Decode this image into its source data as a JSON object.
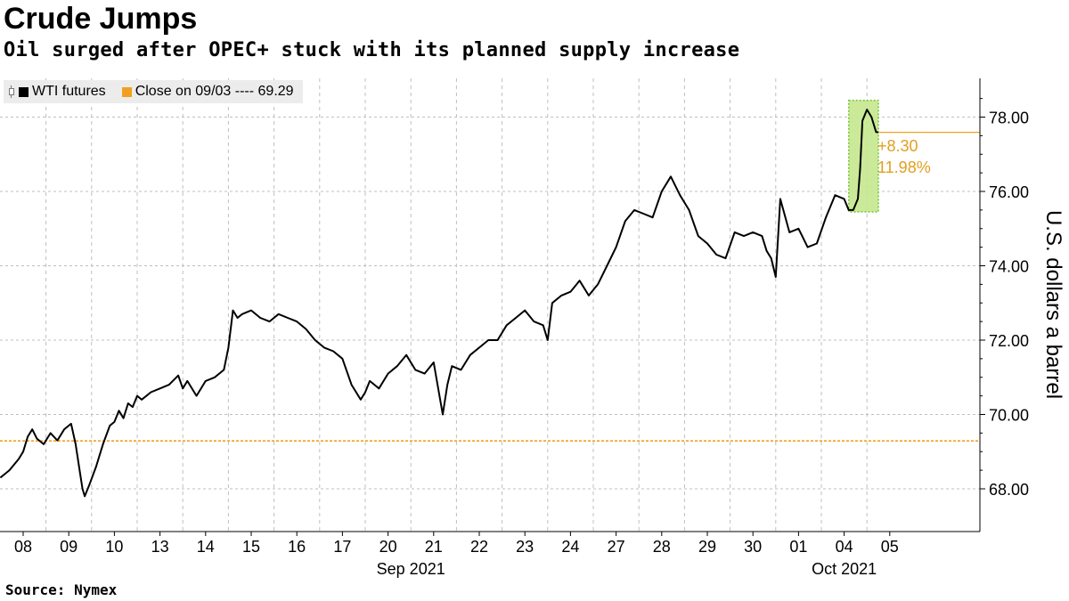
{
  "header": {
    "title": "Crude Jumps",
    "subtitle": "Oil surged after OPEC+ stuck with its planned supply increase"
  },
  "legend": {
    "series_label": "WTI futures",
    "reference_label": "Close on 09/03 ---- 69.29"
  },
  "annotation": {
    "change": "+8.30",
    "percent": "11.98%"
  },
  "source": "Source: Nymex",
  "colors": {
    "series": "#000000",
    "reference": "#f0a020",
    "highlight_fill": "#c4e88e",
    "highlight_border": "#7bc23a",
    "annotation_text": "#e0a020",
    "grid": "#bfbfbf"
  },
  "chart_data": {
    "type": "line",
    "title": "Crude Jumps",
    "subtitle": "Oil surged after OPEC+ stuck with its planned supply increase",
    "ylabel": "U.S. dollars a barrel",
    "y_axis_side": "right",
    "ylim": [
      67.0,
      79.0
    ],
    "yticks": [
      68,
      70,
      72,
      74,
      76,
      78
    ],
    "ytick_labels": [
      "68.00",
      "70.00",
      "72.00",
      "74.00",
      "76.00",
      "78.00"
    ],
    "x_tick_labels": [
      "08",
      "09",
      "10",
      "13",
      "14",
      "15",
      "16",
      "17",
      "20",
      "21",
      "22",
      "23",
      "24",
      "27",
      "28",
      "29",
      "30",
      "01",
      "04",
      "05"
    ],
    "x_group_labels": [
      {
        "label": "Sep 2021",
        "at": "21"
      },
      {
        "label": "Oct 2021",
        "at": "04"
      }
    ],
    "reference_line": {
      "label": "Close on 09/03",
      "value": 69.29
    },
    "current_value_line": 77.59,
    "highlight_region": {
      "from": 18.1,
      "to": 18.75,
      "ymin": 75.45,
      "ymax": 78.45
    },
    "grid": true,
    "legend_position": "top-left",
    "series": [
      {
        "name": "WTI futures",
        "x": [
          -0.5,
          -0.3,
          -0.1,
          0.0,
          0.1,
          0.2,
          0.3,
          0.45,
          0.6,
          0.75,
          0.9,
          1.05,
          1.15,
          1.25,
          1.3,
          1.35,
          1.45,
          1.6,
          1.75,
          1.9,
          2.0,
          2.1,
          2.2,
          2.3,
          2.4,
          2.5,
          2.6,
          2.8,
          3.0,
          3.2,
          3.4,
          3.5,
          3.6,
          3.8,
          4.0,
          4.2,
          4.4,
          4.5,
          4.6,
          4.7,
          4.8,
          5.0,
          5.2,
          5.4,
          5.6,
          5.8,
          6.0,
          6.2,
          6.4,
          6.6,
          6.8,
          7.0,
          7.2,
          7.4,
          7.5,
          7.6,
          7.8,
          8.0,
          8.2,
          8.4,
          8.6,
          8.8,
          9.0,
          9.2,
          9.3,
          9.4,
          9.6,
          9.8,
          10.0,
          10.2,
          10.4,
          10.6,
          10.8,
          11.0,
          11.2,
          11.4,
          11.5,
          11.6,
          11.8,
          12.0,
          12.2,
          12.4,
          12.6,
          12.8,
          13.0,
          13.2,
          13.4,
          13.6,
          13.8,
          14.0,
          14.2,
          14.4,
          14.6,
          14.8,
          15.0,
          15.2,
          15.4,
          15.6,
          15.8,
          16.0,
          16.2,
          16.3,
          16.4,
          16.5,
          16.6,
          16.8,
          17.0,
          17.2,
          17.4,
          17.6,
          17.8,
          18.0,
          18.1,
          18.2,
          18.3,
          18.35,
          18.4,
          18.5,
          18.6,
          18.7,
          18.75
        ],
        "values": [
          68.3,
          68.5,
          68.8,
          69.0,
          69.4,
          69.6,
          69.35,
          69.2,
          69.5,
          69.3,
          69.6,
          69.75,
          69.2,
          68.4,
          68.0,
          67.8,
          68.1,
          68.6,
          69.2,
          69.7,
          69.8,
          70.1,
          69.9,
          70.3,
          70.2,
          70.5,
          70.4,
          70.6,
          70.7,
          70.8,
          71.05,
          70.7,
          70.9,
          70.5,
          70.9,
          71.0,
          71.2,
          71.8,
          72.8,
          72.6,
          72.7,
          72.8,
          72.6,
          72.5,
          72.7,
          72.6,
          72.5,
          72.3,
          72.0,
          71.8,
          71.7,
          71.5,
          70.8,
          70.4,
          70.6,
          70.9,
          70.7,
          71.1,
          71.3,
          71.6,
          71.2,
          71.1,
          71.4,
          70.0,
          70.8,
          71.3,
          71.2,
          71.6,
          71.8,
          72.0,
          72.0,
          72.4,
          72.6,
          72.8,
          72.5,
          72.4,
          72.0,
          73.0,
          73.2,
          73.3,
          73.6,
          73.2,
          73.5,
          74.0,
          74.5,
          75.2,
          75.5,
          75.4,
          75.3,
          76.0,
          76.4,
          75.9,
          75.5,
          74.8,
          74.6,
          74.3,
          74.2,
          74.9,
          74.8,
          74.9,
          74.8,
          74.4,
          74.2,
          73.7,
          75.8,
          74.9,
          75.0,
          74.5,
          74.6,
          75.3,
          75.9,
          75.8,
          75.5,
          75.5,
          75.8,
          76.6,
          77.9,
          78.2,
          78.0,
          77.6,
          77.59
        ]
      }
    ]
  }
}
